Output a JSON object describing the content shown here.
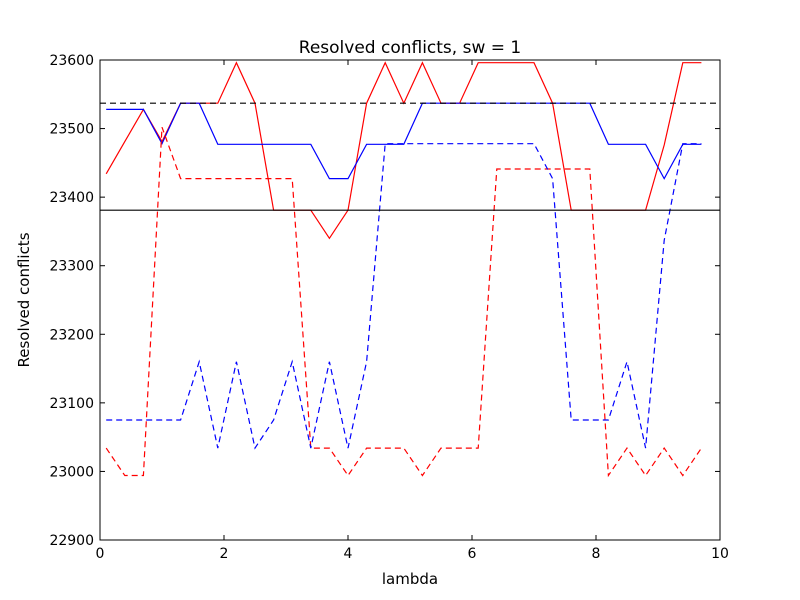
{
  "chart_data": {
    "type": "line",
    "title": "Resolved conflicts, sw = 1",
    "xlabel": "lambda",
    "ylabel": "Resolved conflicts",
    "xlim": [
      0,
      10
    ],
    "ylim": [
      22900,
      23600
    ],
    "xticks": [
      0,
      2,
      4,
      6,
      8,
      10
    ],
    "yticks": [
      22900,
      23000,
      23100,
      23200,
      23300,
      23400,
      23500,
      23600
    ],
    "grid": false,
    "reference_lines": [
      {
        "y": 23537,
        "color": "#000000",
        "style": "dashed"
      },
      {
        "y": 23381,
        "color": "#000000",
        "style": "solid"
      }
    ],
    "series": [
      {
        "color": "#ff0000",
        "style": "solid",
        "x": [
          0.1,
          0.4,
          0.7,
          1.0,
          1.3,
          1.6,
          1.9,
          2.2,
          2.5,
          2.8,
          3.1,
          3.4,
          3.7,
          4.0,
          4.3,
          4.6,
          4.9,
          5.2,
          5.5,
          5.8,
          6.1,
          6.4,
          6.7,
          7.0,
          7.3,
          7.6,
          7.9,
          8.2,
          8.5,
          8.8,
          9.1,
          9.4,
          9.7
        ],
        "y": [
          23434,
          23481,
          23528,
          23481,
          23537,
          23537,
          23537,
          23596,
          23537,
          23381,
          23381,
          23381,
          23340,
          23381,
          23537,
          23596,
          23537,
          23596,
          23537,
          23537,
          23596,
          23596,
          23596,
          23596,
          23537,
          23381,
          23381,
          23381,
          23381,
          23381,
          23476,
          23596,
          23596
        ]
      },
      {
        "color": "#0000ff",
        "style": "solid",
        "x": [
          0.1,
          0.4,
          0.7,
          1.0,
          1.3,
          1.6,
          1.9,
          2.2,
          2.5,
          2.8,
          3.1,
          3.4,
          3.7,
          4.0,
          4.3,
          4.6,
          4.9,
          5.2,
          5.5,
          5.8,
          6.1,
          6.4,
          6.7,
          7.0,
          7.3,
          7.6,
          7.9,
          8.2,
          8.5,
          8.8,
          9.1,
          9.4,
          9.7
        ],
        "y": [
          23528,
          23528,
          23528,
          23478,
          23537,
          23537,
          23477,
          23477,
          23477,
          23477,
          23477,
          23477,
          23427,
          23427,
          23477,
          23477,
          23477,
          23537,
          23537,
          23537,
          23537,
          23537,
          23537,
          23537,
          23537,
          23537,
          23537,
          23477,
          23477,
          23477,
          23427,
          23477,
          23477
        ]
      },
      {
        "color": "#ff0000",
        "style": "dashed",
        "x": [
          0.1,
          0.4,
          0.7,
          1.0,
          1.3,
          1.6,
          1.9,
          2.2,
          2.5,
          2.8,
          3.1,
          3.4,
          3.7,
          4.0,
          4.3,
          4.6,
          4.9,
          5.2,
          5.5,
          5.8,
          6.1,
          6.4,
          6.7,
          7.0,
          7.3,
          7.6,
          7.9,
          8.2,
          8.5,
          8.8,
          9.1,
          9.4,
          9.7
        ],
        "y": [
          23034,
          22994,
          22994,
          23502,
          23427,
          23427,
          23427,
          23427,
          23427,
          23427,
          23427,
          23034,
          23034,
          22994,
          23034,
          23034,
          23034,
          22994,
          23034,
          23034,
          23034,
          23441,
          23441,
          23441,
          23441,
          23441,
          23441,
          22994,
          23034,
          22994,
          23034,
          22994,
          23034
        ]
      },
      {
        "color": "#0000ff",
        "style": "dashed",
        "x": [
          0.1,
          0.4,
          0.7,
          1.0,
          1.3,
          1.6,
          1.9,
          2.2,
          2.5,
          2.8,
          3.1,
          3.4,
          3.7,
          4.0,
          4.3,
          4.6,
          4.9,
          5.2,
          5.5,
          5.8,
          6.1,
          6.4,
          6.7,
          7.0,
          7.3,
          7.6,
          7.9,
          8.2,
          8.5,
          8.8,
          9.1,
          9.4,
          9.7
        ],
        "y": [
          23075,
          23075,
          23075,
          23075,
          23075,
          23160,
          23034,
          23160,
          23034,
          23075,
          23160,
          23034,
          23160,
          23034,
          23160,
          23478,
          23478,
          23478,
          23478,
          23478,
          23478,
          23478,
          23478,
          23478,
          23427,
          23075,
          23075,
          23075,
          23160,
          23034,
          23337,
          23478,
          23478
        ]
      }
    ]
  }
}
